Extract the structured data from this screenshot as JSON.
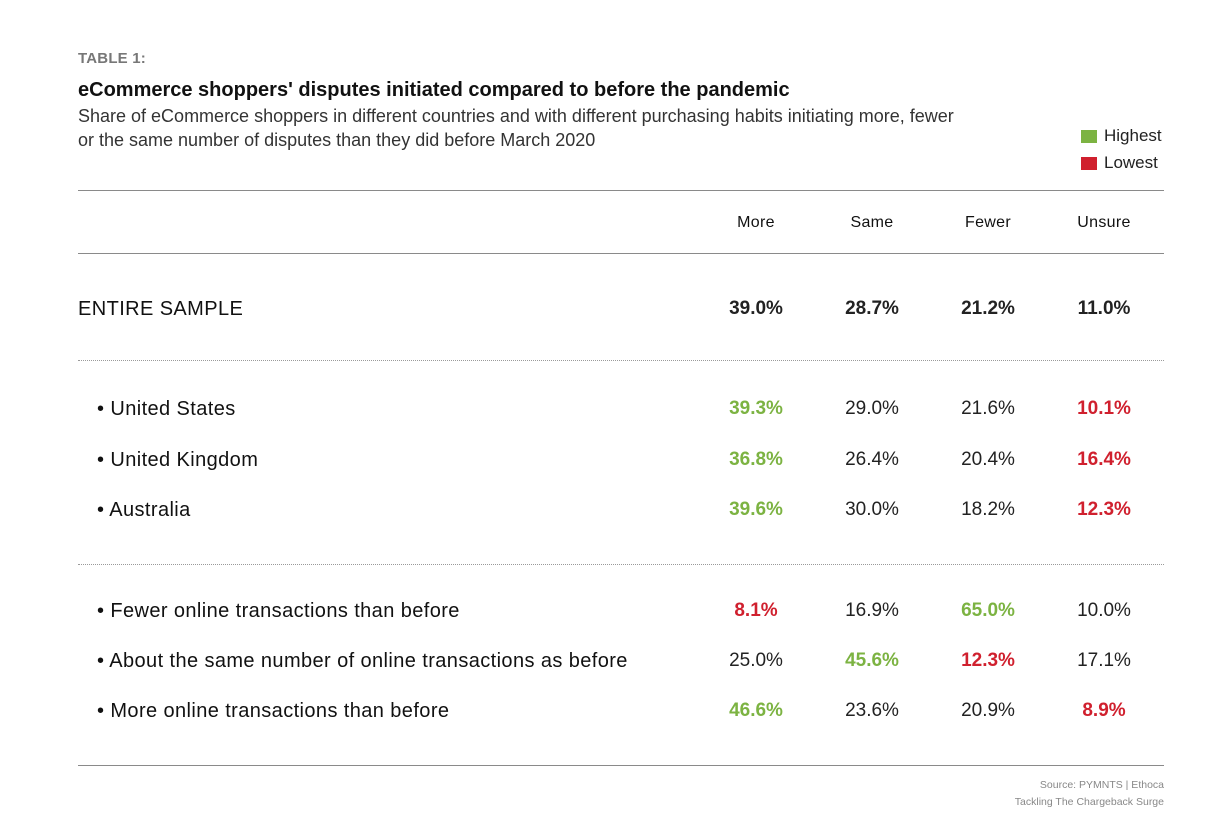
{
  "header": {
    "table_label": "TABLE 1:",
    "title": "eCommerce shoppers' disputes initiated compared to before the pandemic",
    "subtitle": "Share of eCommerce shoppers in different countries and with different purchasing habits initiating more, fewer or the same number of disputes than they did before March 2020"
  },
  "legend": [
    {
      "label": "Highest",
      "color": "#7cb342"
    },
    {
      "label": "Lowest",
      "color": "#d0202e"
    }
  ],
  "colors": {
    "highest": "#7cb342",
    "lowest": "#d0202e"
  },
  "columns": [
    "More",
    "Same",
    "Fewer",
    "Unsure"
  ],
  "rows": {
    "entire": {
      "label": "ENTIRE SAMPLE",
      "values": [
        "39.0%",
        "28.7%",
        "21.2%",
        "11.0%"
      ]
    },
    "us": {
      "label": "United States",
      "values": [
        "39.3%",
        "29.0%",
        "21.6%",
        "10.1%"
      ]
    },
    "uk": {
      "label": "United Kingdom",
      "values": [
        "36.8%",
        "26.4%",
        "20.4%",
        "16.4%"
      ]
    },
    "au": {
      "label": "Australia",
      "values": [
        "39.6%",
        "30.0%",
        "18.2%",
        "12.3%"
      ]
    },
    "fewer_tx": {
      "label": "Fewer online transactions than before",
      "values": [
        "8.1%",
        "16.9%",
        "65.0%",
        "10.0%"
      ]
    },
    "same_tx": {
      "label": "About the same number of online transactions as before",
      "values": [
        "25.0%",
        "45.6%",
        "12.3%",
        "17.1%"
      ]
    },
    "more_tx": {
      "label": "More online transactions than before",
      "values": [
        "46.6%",
        "23.6%",
        "20.9%",
        "8.9%"
      ]
    }
  },
  "chart_data": {
    "type": "table",
    "title": "eCommerce shoppers' disputes initiated compared to before the pandemic",
    "columns": [
      "More",
      "Same",
      "Fewer",
      "Unsure"
    ],
    "rows": [
      {
        "label": "ENTIRE SAMPLE",
        "values": [
          39.0,
          28.7,
          21.2,
          11.0
        ]
      },
      {
        "label": "United States",
        "values": [
          39.3,
          29.0,
          21.6,
          10.1
        ],
        "highest": "More",
        "lowest": "Unsure"
      },
      {
        "label": "United Kingdom",
        "values": [
          36.8,
          26.4,
          20.4,
          16.4
        ],
        "highest": "More",
        "lowest": "Unsure"
      },
      {
        "label": "Australia",
        "values": [
          39.6,
          30.0,
          18.2,
          12.3
        ],
        "highest": "More",
        "lowest": "Unsure"
      },
      {
        "label": "Fewer online transactions than before",
        "values": [
          8.1,
          16.9,
          65.0,
          10.0
        ],
        "highest": "Fewer",
        "lowest": "More"
      },
      {
        "label": "About the same number of online transactions as before",
        "values": [
          25.0,
          45.6,
          12.3,
          17.1
        ],
        "highest": "Same",
        "lowest": "Fewer"
      },
      {
        "label": "More online transactions than before",
        "values": [
          46.6,
          23.6,
          20.9,
          8.9
        ],
        "highest": "More",
        "lowest": "Unsure"
      }
    ]
  },
  "source": {
    "line1": "Source: PYMNTS  |  Ethoca",
    "line2": "Tackling The Chargeback Surge"
  }
}
